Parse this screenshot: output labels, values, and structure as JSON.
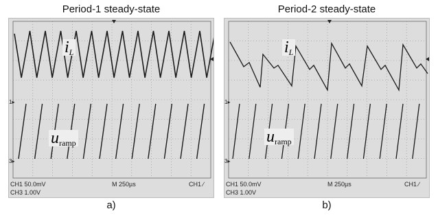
{
  "panels": [
    {
      "title": "Period-1 steady-state",
      "caption": "a)",
      "il_label": "i",
      "il_sub": "L",
      "u_label": "u",
      "u_sub": "ramp",
      "readout": {
        "ch1_scale": "CH1  50.0mV",
        "ch3_scale": "CH3  1.00V",
        "time": "M 250µs",
        "trigger": "CH1 ∕"
      }
    },
    {
      "title": "Period-2 steady-state",
      "caption": "b)",
      "il_label": "i",
      "il_sub": "L",
      "u_label": "u",
      "u_sub": "ramp",
      "readout": {
        "ch1_scale": "CH1  50.0mV",
        "ch3_scale": "CH3  1.00V",
        "time": "M 250µs",
        "trigger": "CH1 ∕"
      }
    }
  ],
  "colors": {
    "screen": "#dddddd",
    "grid": "#888888",
    "trace": "#1a1a1a"
  }
}
